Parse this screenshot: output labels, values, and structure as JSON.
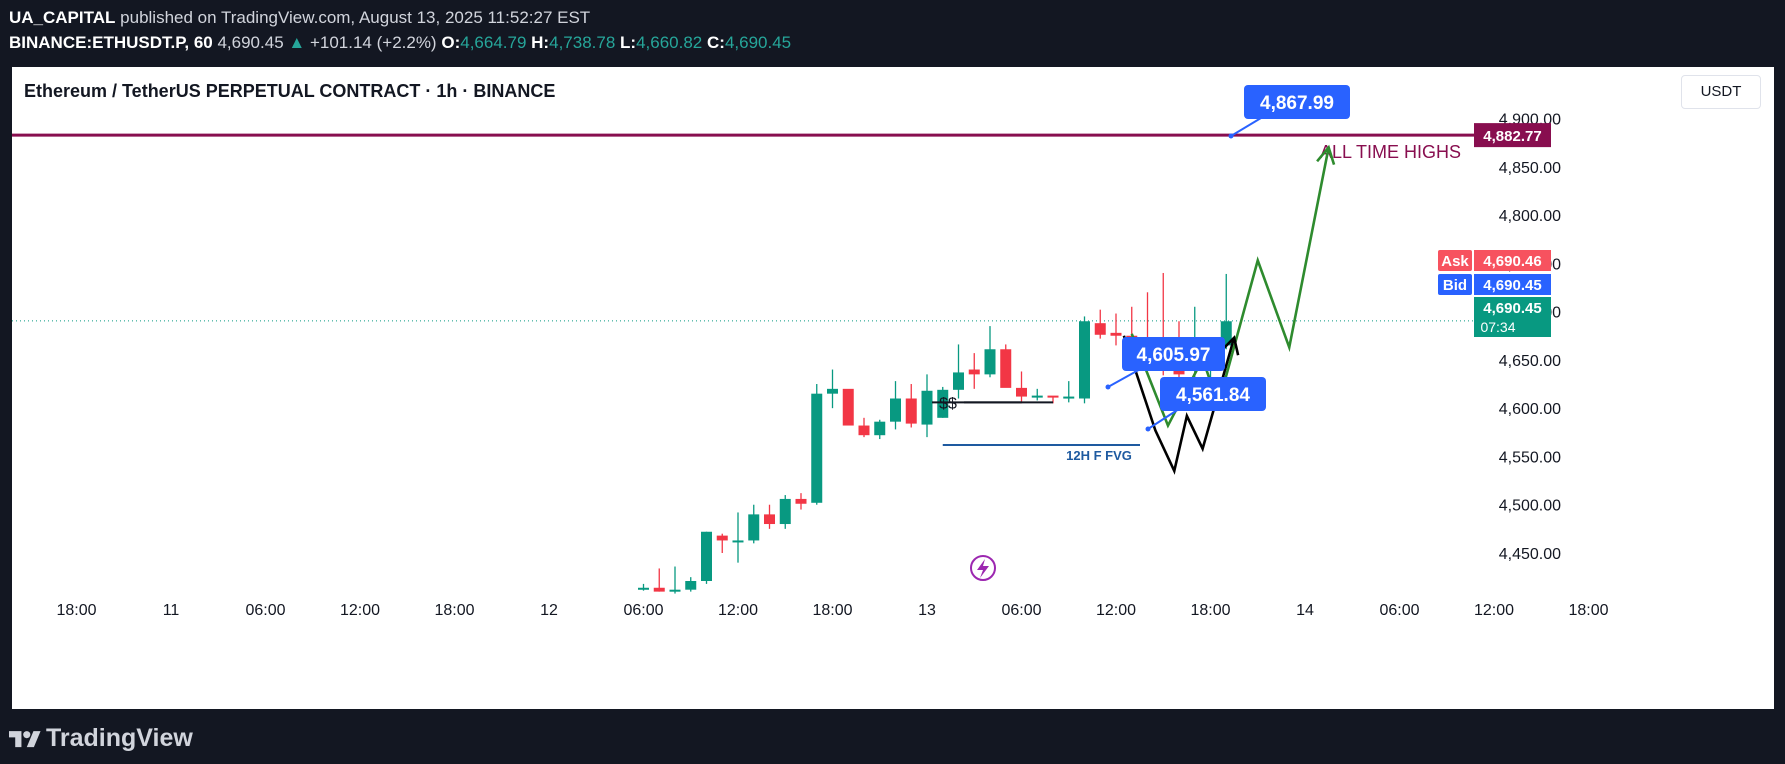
{
  "header": {
    "author": "UA_CAPITAL",
    "published": "published on TradingView.com, August 13, 2025 11:52:27 EST",
    "symbol": "BINANCE:ETHUSDT.P, 60",
    "last": "4,690.45",
    "change": "+101.14 (+2.2%)",
    "o_label": "O:",
    "o": "4,664.79",
    "h_label": "H:",
    "h": "4,738.78",
    "l_label": "L:",
    "l": "4,660.82",
    "c_label": "C:",
    "c": "4,690.45"
  },
  "chart_title": "Ethereum / TetherUS PERPETUAL CONTRACT · 1h · BINANCE",
  "currency_button": "USDT",
  "footer": {
    "brand": "TradingView"
  },
  "colors": {
    "up": "#089981",
    "down": "#f23645",
    "ath": "#880e4f",
    "fvg": "#1e5aa0",
    "label": "#2962ff",
    "path_green": "#2e8b2e"
  },
  "chart_data": {
    "type": "candlestick",
    "title": "Ethereum / TetherUS PERPETUAL CONTRACT · 1h · BINANCE",
    "x_ticks": [
      "18:00",
      "11",
      "06:00",
      "12:00",
      "18:00",
      "12",
      "06:00",
      "12:00",
      "18:00",
      "13",
      "06:00",
      "12:00",
      "18:00",
      "14",
      "06:00",
      "12:00",
      "18:00"
    ],
    "y_ticks": [
      "4,450.00",
      "4,500.00",
      "4,550.00",
      "4,600.00",
      "4,650.00",
      "4,700.00",
      "4,750.00",
      "4,800.00",
      "4,850.00",
      "4,900.00"
    ],
    "y_tick_values": [
      4450,
      4500,
      4550,
      4600,
      4650,
      4700,
      4750,
      4800,
      4850,
      4900
    ],
    "ylim": [
      4400,
      4935
    ],
    "candles_start_hour": 7,
    "candles": [
      [
        4414,
        4418,
        4411,
        4414
      ],
      [
        4414,
        4434,
        4410,
        4410
      ],
      [
        4410,
        4436,
        4408,
        4412
      ],
      [
        4412,
        4425,
        4410,
        4421
      ],
      [
        4421,
        4472,
        4418,
        4472
      ],
      [
        4468,
        4470,
        4450,
        4463
      ],
      [
        4463,
        4492,
        4440,
        4463
      ],
      [
        4463,
        4500,
        4460,
        4490
      ],
      [
        4490,
        4500,
        4475,
        4480
      ],
      [
        4480,
        4510,
        4475,
        4506
      ],
      [
        4506,
        4512,
        4495,
        4501
      ],
      [
        4502,
        4625,
        4500,
        4615
      ],
      [
        4615,
        4640,
        4600,
        4620
      ],
      [
        4620,
        4618,
        4585,
        4582
      ],
      [
        4582,
        4590,
        4570,
        4572
      ],
      [
        4572,
        4588,
        4568,
        4586
      ],
      [
        4586,
        4628,
        4578,
        4610
      ],
      [
        4610,
        4625,
        4580,
        4584
      ],
      [
        4583,
        4635,
        4570,
        4618
      ],
      [
        4590,
        4622,
        4590,
        4619
      ],
      [
        4619,
        4666,
        4610,
        4637
      ],
      [
        4640,
        4657,
        4620,
        4635
      ],
      [
        4635,
        4685,
        4632,
        4661
      ],
      [
        4661,
        4666,
        4622,
        4621
      ],
      [
        4621,
        4638,
        4605,
        4612
      ],
      [
        4612,
        4620,
        4608,
        4613
      ],
      [
        4613,
        4612,
        4605,
        4612
      ],
      [
        4611,
        4628,
        4606,
        4612
      ],
      [
        4610,
        4695,
        4605,
        4690
      ],
      [
        4688,
        4702,
        4672,
        4676
      ],
      [
        4678,
        4698,
        4665,
        4675
      ],
      [
        4675,
        4705,
        4662,
        4672
      ],
      [
        4672,
        4720,
        4650,
        4660
      ],
      [
        4670,
        4740,
        4634,
        4648
      ],
      [
        4649,
        4690,
        4630,
        4635
      ],
      [
        4640,
        4705,
        4623,
        4643
      ],
      [
        4645,
        4668,
        4620,
        4665
      ],
      [
        4665,
        4739,
        4661,
        4690
      ]
    ],
    "horizontal_lines": [
      {
        "label": "ALL TIME HIGHS",
        "price": 4882.77,
        "price_label": "4,882.77"
      },
      {
        "label": "12H F FVG",
        "price": 4561.84
      },
      {
        "label": "$$",
        "price": 4606
      }
    ],
    "current_price": {
      "ask_label": "Ask",
      "ask": "4,690.46",
      "bid_label": "Bid",
      "bid": "4,690.45",
      "last": "4,690.45",
      "countdown": "07:34",
      "value": 4690.45
    },
    "price_callouts": [
      "4,867.99",
      "4,605.97",
      "4,561.84"
    ],
    "projections": {
      "black_path": [
        [
          12.5,
          4675
        ],
        [
          14.5,
          4577
        ],
        [
          15.7,
          4535
        ],
        [
          16.5,
          4592
        ],
        [
          17.5,
          4558
        ],
        [
          19.5,
          4673
        ]
      ],
      "green_path": [
        [
          13,
          4677
        ],
        [
          15.3,
          4582
        ],
        [
          17.5,
          4651
        ],
        [
          18.5,
          4604
        ],
        [
          21.0,
          4753
        ],
        [
          23.0,
          4663
        ],
        [
          25.5,
          4870
        ]
      ]
    }
  }
}
